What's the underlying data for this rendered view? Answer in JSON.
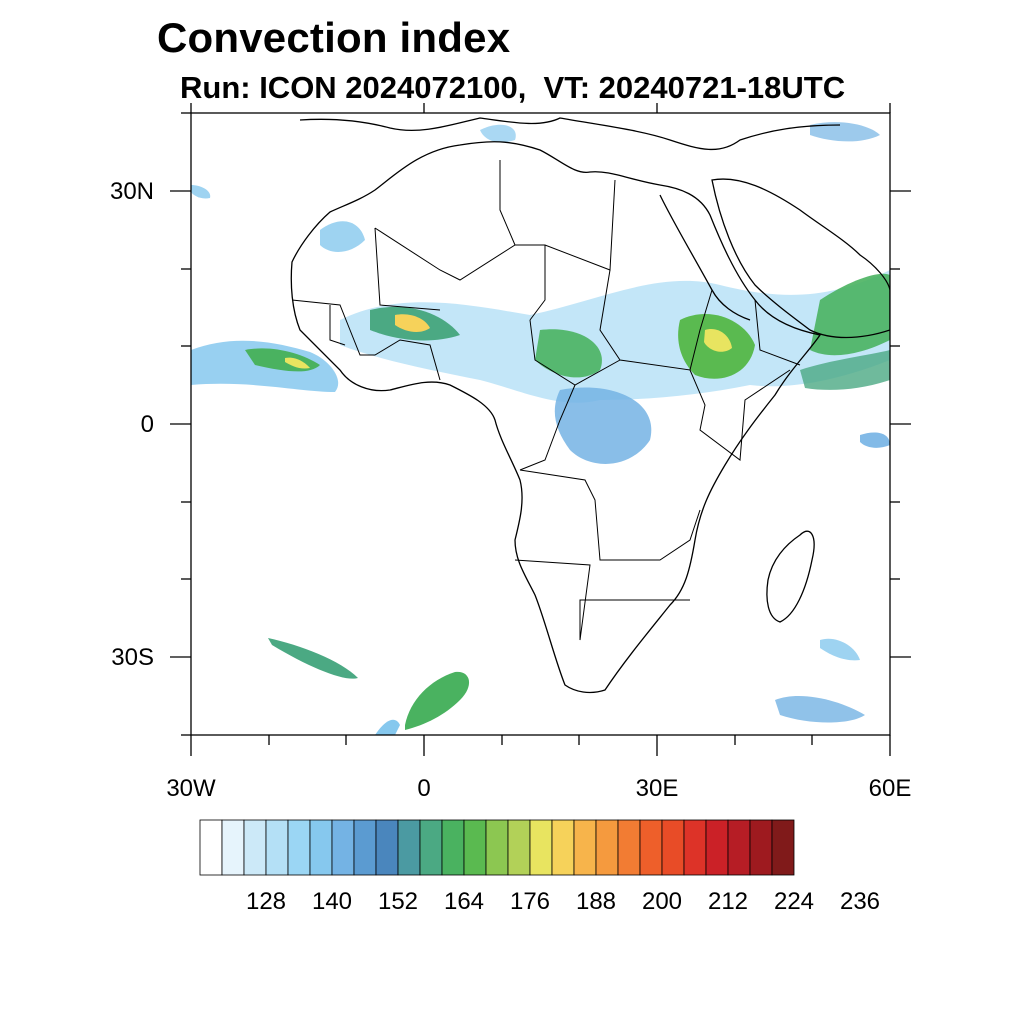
{
  "title": "Convection index",
  "subtitle": "Run: ICON 2024072100,  VT: 20240721-18UTC",
  "map": {
    "projection": "lat-lon",
    "lon_range": [
      -30,
      60
    ],
    "lat_range": [
      -40,
      40
    ],
    "coastline_color": "#000000",
    "lat_ticks": [
      {
        "value": 30,
        "label": "30N"
      },
      {
        "value": 0,
        "label": "0"
      },
      {
        "value": -30,
        "label": "30S"
      }
    ],
    "lon_ticks": [
      {
        "value": -30,
        "label": "30W"
      },
      {
        "value": 0,
        "label": "0"
      },
      {
        "value": 30,
        "label": "30E"
      },
      {
        "value": 60,
        "label": "60E"
      }
    ]
  },
  "colorbar": {
    "colors": [
      "#ffffff",
      "#e6f4fc",
      "#cce9f8",
      "#b4e0f6",
      "#9bd6f4",
      "#86c8ee",
      "#74b3e4",
      "#5b9bd1",
      "#4a86bd",
      "#4b9aa2",
      "#4ba983",
      "#4ab260",
      "#5aba50",
      "#8cc751",
      "#b2d158",
      "#e8e460",
      "#f6d25a",
      "#f7b44b",
      "#f59a3e",
      "#f27c33",
      "#ee5f2a",
      "#e84c27",
      "#dd3328",
      "#cb2127",
      "#b61d25",
      "#9e1a1f",
      "#801a1a"
    ],
    "labels": [
      "128",
      "140",
      "152",
      "164",
      "176",
      "188",
      "200",
      "212",
      "224",
      "236"
    ]
  }
}
